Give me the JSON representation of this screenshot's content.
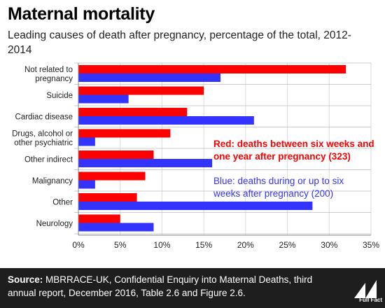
{
  "header": {
    "title": "Maternal mortality",
    "subtitle": "Leading causes of death after pregnancy, percentage of the total, 2012-2014"
  },
  "footer": {
    "source_label": "Source:",
    "source_text": "MBRRACE-UK, Confidential Enquiry into Maternal Deaths, third annual report, December 2016, Table 2.6 and Figure 2.6.",
    "logo_text": "Full Fact"
  },
  "colors": {
    "red": "#ff0000",
    "blue": "#3333ff"
  },
  "chart_data": {
    "type": "bar",
    "orientation": "horizontal",
    "categories": [
      [
        "Not related to",
        "pregnancy"
      ],
      [
        "Suicide"
      ],
      [
        "Cardiac disease"
      ],
      [
        "Drugs, alcohol or",
        "other psychiatric"
      ],
      [
        "Other indirect"
      ],
      [
        "Malignancy"
      ],
      [
        "Other"
      ],
      [
        "Neurology"
      ]
    ],
    "series": [
      {
        "name": "Red: deaths between six weeks and one year after pregnancy (323)",
        "color": "#ff0000",
        "values": [
          32,
          15,
          13,
          11,
          9,
          8,
          7,
          5
        ]
      },
      {
        "name": "Blue: deaths during or up to six weeks after pregnancy (200)",
        "color": "#3333ff",
        "values": [
          17,
          6,
          21,
          2,
          16,
          2,
          28,
          9
        ]
      }
    ],
    "xlim": [
      0,
      35
    ],
    "xticks": [
      "0%",
      "5%",
      "10%",
      "15%",
      "20%",
      "25%",
      "30%",
      "35%"
    ],
    "xtick_values": [
      0,
      5,
      10,
      15,
      20,
      25,
      30,
      35
    ],
    "annotations": [
      {
        "lines": [
          "Red: deaths between six weeks and",
          "one year after pregnancy (323)"
        ],
        "color": "#ff0000"
      },
      {
        "lines": [
          "Blue: deaths during or up to six",
          "weeks after pregnancy (200)"
        ],
        "color": "#3333ff"
      }
    ]
  }
}
